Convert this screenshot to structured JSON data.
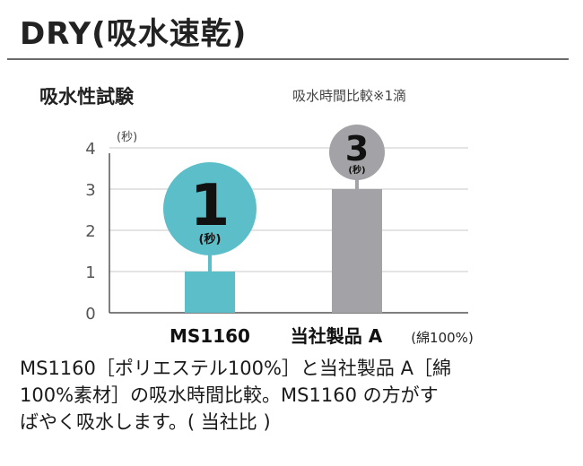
{
  "header": {
    "title": "DRY(吸水速乾)",
    "subtitle": "吸水性試験",
    "note": "吸水時間比較※1滴"
  },
  "chart_data": {
    "type": "bar",
    "title": "吸水性試験",
    "ylabel": "(秒)",
    "ylim": [
      0,
      4
    ],
    "yticks": [
      "0",
      "1",
      "2",
      "3",
      "4"
    ],
    "grid": true,
    "categories": [
      "MS1160",
      "当社製品 A"
    ],
    "category_notes": [
      "",
      "(綿100%)"
    ],
    "values": [
      1,
      3
    ],
    "bar_colors": [
      "#5bbec8",
      "#a3a3a7"
    ],
    "labels": [
      {
        "value": "1",
        "unit": "(秒)"
      },
      {
        "value": "3",
        "unit": "(秒)"
      }
    ]
  },
  "caption": {
    "lines": [
      "MS1160［ポリエステル100%］と当社製品 A［綿",
      "100%素材］の吸水時間比較。MS1160 の方がす",
      "ばやく吸水します。( 当社比 )"
    ]
  }
}
